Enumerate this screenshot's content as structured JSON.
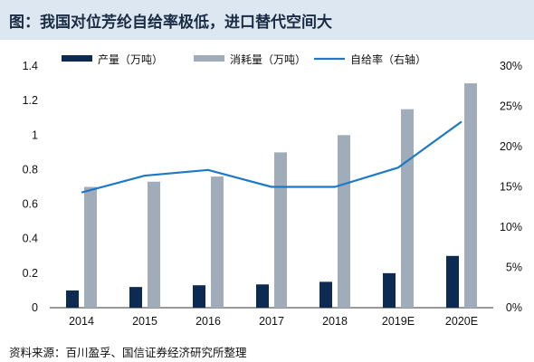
{
  "header": {
    "title": "图：我国对位芳纶自给率极低，进口替代空间大"
  },
  "footer": {
    "source": "资料来源：百川盈孚、国信证券经济研究所整理"
  },
  "colors": {
    "header_bg": "#dde7f1",
    "production": "#0d2a52",
    "consumption": "#a1acba",
    "self_sufficiency": "#1e78c8"
  },
  "chart_data": {
    "type": "bar",
    "categories": [
      "2014",
      "2015",
      "2016",
      "2017",
      "2018",
      "2019E",
      "2020E"
    ],
    "series": [
      {
        "name": "产量（万吨）",
        "kind": "bar",
        "axis": "left",
        "values": [
          0.1,
          0.12,
          0.13,
          0.135,
          0.15,
          0.2,
          0.3
        ]
      },
      {
        "name": "消耗量（万吨）",
        "kind": "bar",
        "axis": "left",
        "values": [
          0.7,
          0.73,
          0.76,
          0.9,
          1.0,
          1.15,
          1.3
        ]
      },
      {
        "name": "自给率（右轴）",
        "kind": "line",
        "axis": "right",
        "values": [
          14.3,
          16.4,
          17.1,
          15.0,
          15.0,
          17.4,
          23.1
        ]
      }
    ],
    "left_axis": {
      "ticks": [
        "0",
        "0.2",
        "0.4",
        "0.6",
        "0.8",
        "1",
        "1.2",
        "1.4"
      ],
      "range": [
        0,
        1.4
      ]
    },
    "right_axis": {
      "ticks": [
        "0%",
        "5%",
        "10%",
        "15%",
        "20%",
        "25%",
        "30%"
      ],
      "range": [
        0,
        30
      ]
    },
    "grid": false,
    "legend_position": "top"
  }
}
